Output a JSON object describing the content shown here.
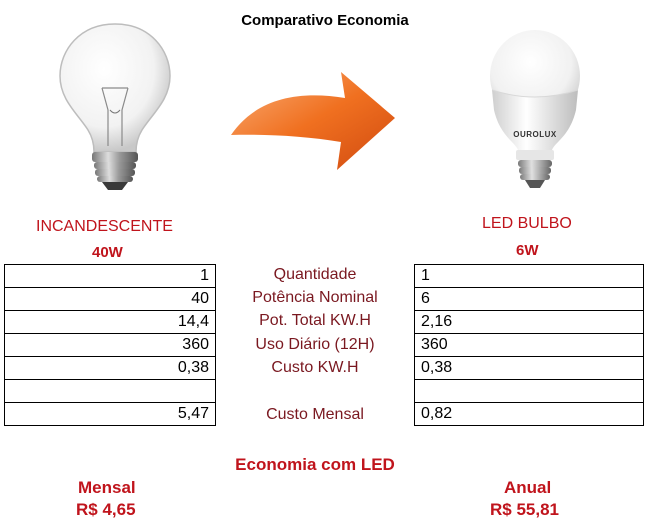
{
  "title": "Comparativo Economia",
  "left_bulb": {
    "name": "INCANDESCENTE",
    "power": "40W"
  },
  "right_bulb": {
    "name": "LED BULBO",
    "power": "6W",
    "brand": "OUROLUX"
  },
  "rows": [
    {
      "label": "Quantidade",
      "incandescent": "1",
      "led": "1"
    },
    {
      "label": "Potência Nominal",
      "incandescent": "40",
      "led": "6"
    },
    {
      "label": "Pot. Total KW.H",
      "incandescent": "14,4",
      "led": "2,16"
    },
    {
      "label": "Uso Diário (12H)",
      "incandescent": "360",
      "led": "360"
    },
    {
      "label": "Custo KW.H",
      "incandescent": "0,38",
      "led": "0,38"
    },
    {
      "label": "",
      "incandescent": "",
      "led": ""
    },
    {
      "label": "Custo Mensal",
      "incandescent": "5,47",
      "led": "0,82"
    }
  ],
  "savings": {
    "heading": "Economia com LED",
    "monthly_label": "Mensal",
    "monthly_value": "R$ 4,65",
    "annual_label": "Anual",
    "annual_value": "R$ 55,81"
  },
  "icons": {
    "left": "incandescent-bulb-icon",
    "arrow": "arrow-right-icon",
    "right": "led-bulb-icon"
  },
  "colors": {
    "accent_red": "#c0141c",
    "label_dark_red": "#7a1820",
    "arrow_orange": "#f07020"
  }
}
